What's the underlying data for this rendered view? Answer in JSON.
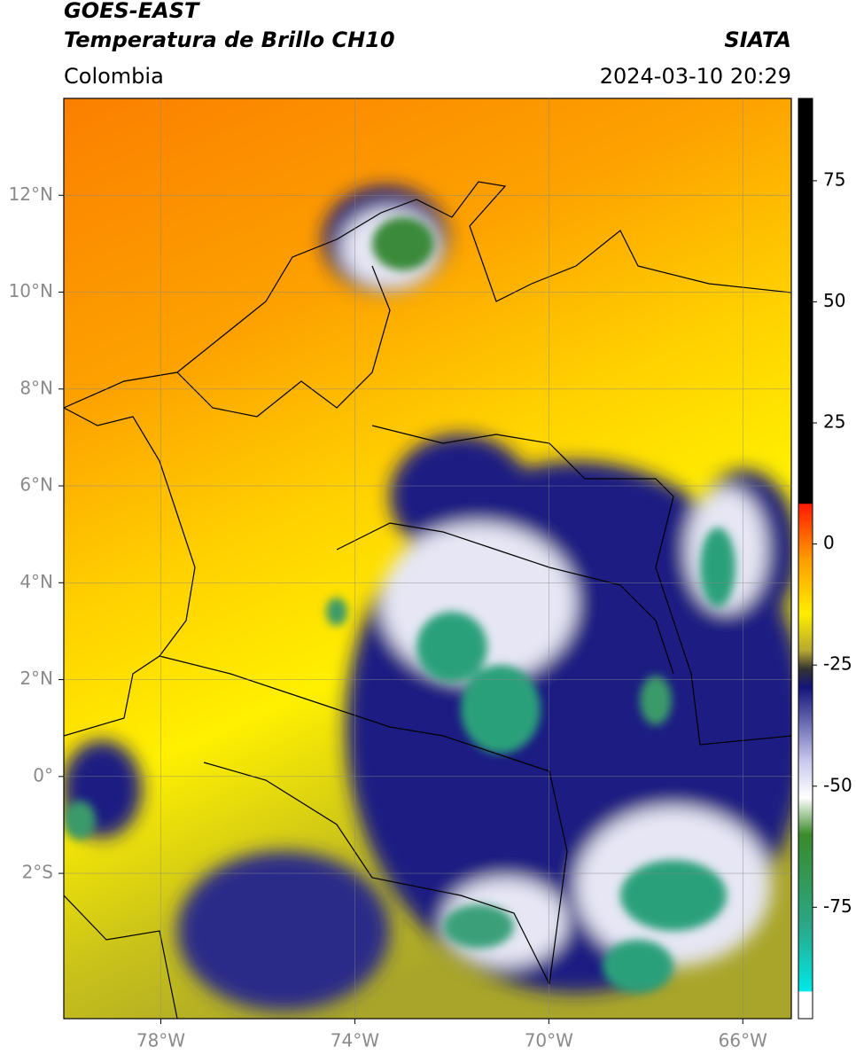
{
  "header": {
    "title": "GOES-EAST",
    "subtitle": "Temperatura de Brillo CH10",
    "source": "SIATA",
    "region": "Colombia",
    "datetime": "2024-03-10 20:29"
  },
  "map": {
    "xlim": [
      -80,
      -65
    ],
    "ylim": [
      -5,
      14
    ],
    "xticks": [
      {
        "value": -78,
        "label": "78°W"
      },
      {
        "value": -74,
        "label": "74°W"
      },
      {
        "value": -70,
        "label": "70°W"
      },
      {
        "value": -66,
        "label": "66°W"
      }
    ],
    "yticks": [
      {
        "value": 12,
        "label": "12°N"
      },
      {
        "value": 10,
        "label": "10°N"
      },
      {
        "value": 8,
        "label": "8°N"
      },
      {
        "value": 6,
        "label": "6°N"
      },
      {
        "value": 4,
        "label": "4°N"
      },
      {
        "value": 2,
        "label": "2°N"
      },
      {
        "value": 0,
        "label": "0°"
      },
      {
        "value": -2,
        "label": "2°S"
      }
    ],
    "grid": true
  },
  "colorbar": {
    "lim": [
      -98,
      92
    ],
    "ticks": [
      75,
      50,
      25,
      0,
      -25,
      -50,
      -75
    ]
  }
}
